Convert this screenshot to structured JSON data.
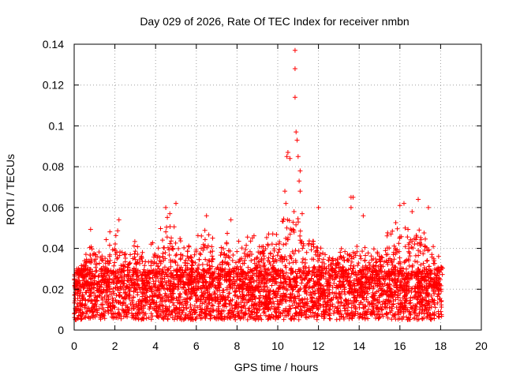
{
  "chart_data": {
    "type": "scatter",
    "title": "Day 029 of 2026, Rate Of TEC Index for receiver nmbn",
    "xlabel": "GPS time / hours",
    "ylabel": "ROTI / TECUs",
    "xlim": [
      0,
      20
    ],
    "ylim": [
      0,
      0.14
    ],
    "xticks": [
      0,
      2,
      4,
      6,
      8,
      10,
      12,
      14,
      16,
      18,
      20
    ],
    "yticks": [
      0,
      0.02,
      0.04,
      0.06,
      0.08,
      0.1,
      0.12,
      0.14
    ],
    "xtick_labels": [
      "0",
      "2",
      "4",
      "6",
      "8",
      "10",
      "12",
      "14",
      "16",
      "18",
      "20"
    ],
    "ytick_labels": [
      "0",
      "0.02",
      "0.04",
      "0.06",
      "0.08",
      "0.1",
      "0.12",
      "0.14"
    ],
    "grid": true,
    "marker": "+",
    "color": "#ff0000",
    "data_span_hours": [
      0,
      18.1
    ],
    "baseline_range": [
      0.005,
      0.03
    ],
    "peak_points": [
      {
        "x": 10.85,
        "y": 0.137
      },
      {
        "x": 10.85,
        "y": 0.128
      },
      {
        "x": 10.85,
        "y": 0.114
      },
      {
        "x": 10.9,
        "y": 0.097
      },
      {
        "x": 10.95,
        "y": 0.093
      },
      {
        "x": 10.5,
        "y": 0.087
      },
      {
        "x": 10.45,
        "y": 0.085
      },
      {
        "x": 11.0,
        "y": 0.085
      },
      {
        "x": 10.6,
        "y": 0.084
      },
      {
        "x": 11.1,
        "y": 0.078
      },
      {
        "x": 11.05,
        "y": 0.073
      },
      {
        "x": 11.1,
        "y": 0.068
      },
      {
        "x": 10.35,
        "y": 0.068
      },
      {
        "x": 10.4,
        "y": 0.062
      },
      {
        "x": 13.6,
        "y": 0.065
      },
      {
        "x": 13.7,
        "y": 0.065
      },
      {
        "x": 13.6,
        "y": 0.06
      },
      {
        "x": 16.9,
        "y": 0.064
      },
      {
        "x": 16.2,
        "y": 0.062
      },
      {
        "x": 16.0,
        "y": 0.061
      },
      {
        "x": 17.4,
        "y": 0.06
      },
      {
        "x": 5.0,
        "y": 0.062
      },
      {
        "x": 4.5,
        "y": 0.06
      },
      {
        "x": 4.7,
        "y": 0.057
      },
      {
        "x": 12.0,
        "y": 0.06
      },
      {
        "x": 6.5,
        "y": 0.056
      },
      {
        "x": 2.2,
        "y": 0.054
      },
      {
        "x": 7.7,
        "y": 0.054
      },
      {
        "x": 16.6,
        "y": 0.058
      },
      {
        "x": 14.2,
        "y": 0.056
      },
      {
        "x": 10.8,
        "y": 0.058
      },
      {
        "x": 11.2,
        "y": 0.057
      }
    ],
    "activity_envelope": [
      {
        "x": 0.0,
        "y": 0.03
      },
      {
        "x": 0.5,
        "y": 0.035
      },
      {
        "x": 0.8,
        "y": 0.05
      },
      {
        "x": 1.2,
        "y": 0.04
      },
      {
        "x": 1.8,
        "y": 0.05
      },
      {
        "x": 2.2,
        "y": 0.05
      },
      {
        "x": 2.7,
        "y": 0.04
      },
      {
        "x": 3.0,
        "y": 0.045
      },
      {
        "x": 3.5,
        "y": 0.04
      },
      {
        "x": 4.0,
        "y": 0.045
      },
      {
        "x": 4.5,
        "y": 0.058
      },
      {
        "x": 5.0,
        "y": 0.05
      },
      {
        "x": 5.5,
        "y": 0.04
      },
      {
        "x": 6.0,
        "y": 0.045
      },
      {
        "x": 6.5,
        "y": 0.055
      },
      {
        "x": 7.0,
        "y": 0.04
      },
      {
        "x": 7.5,
        "y": 0.05
      },
      {
        "x": 8.0,
        "y": 0.045
      },
      {
        "x": 8.5,
        "y": 0.05
      },
      {
        "x": 9.0,
        "y": 0.045
      },
      {
        "x": 9.5,
        "y": 0.05
      },
      {
        "x": 10.0,
        "y": 0.05
      },
      {
        "x": 10.5,
        "y": 0.06
      },
      {
        "x": 11.0,
        "y": 0.065
      },
      {
        "x": 11.5,
        "y": 0.055
      },
      {
        "x": 12.0,
        "y": 0.05
      },
      {
        "x": 12.5,
        "y": 0.04
      },
      {
        "x": 13.0,
        "y": 0.04
      },
      {
        "x": 13.5,
        "y": 0.045
      },
      {
        "x": 14.0,
        "y": 0.04
      },
      {
        "x": 14.5,
        "y": 0.045
      },
      {
        "x": 15.0,
        "y": 0.04
      },
      {
        "x": 15.5,
        "y": 0.05
      },
      {
        "x": 16.0,
        "y": 0.055
      },
      {
        "x": 16.5,
        "y": 0.055
      },
      {
        "x": 17.0,
        "y": 0.055
      },
      {
        "x": 17.5,
        "y": 0.045
      },
      {
        "x": 18.0,
        "y": 0.035
      }
    ]
  }
}
